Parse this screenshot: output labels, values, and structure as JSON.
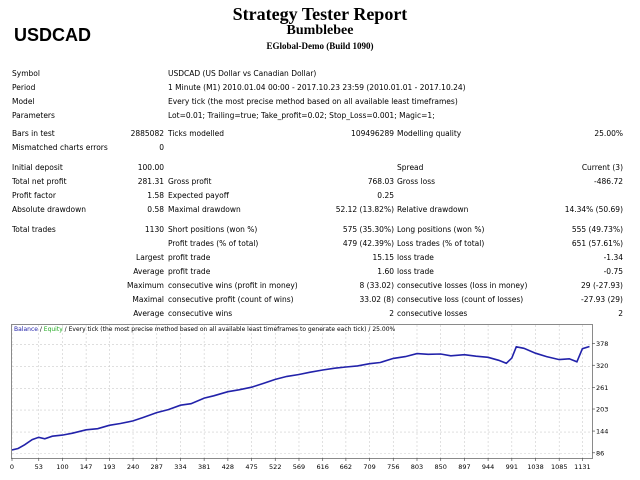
{
  "symbol_title": "USDCAD",
  "report": {
    "title": "Strategy Tester Report",
    "expert": "Bumblebee",
    "server": "EGlobal-Demo (Build 1090)"
  },
  "info": {
    "symbol_label": "Symbol",
    "symbol_value": "USDCAD (US Dollar vs Canadian Dollar)",
    "period_label": "Period",
    "period_value": "1 Minute (M1) 2010.01.04 00:00 - 2017.10.23 23:59 (2010.01.01 - 2017.10.24)",
    "model_label": "Model",
    "model_value": "Every tick (the most precise method based on all available least timeframes)",
    "params_label": "Parameters",
    "params_value": "Lot=0.01; Trailing=true; Take_profit=0.02; Stop_Loss=0.001; Magic=1;"
  },
  "bars": {
    "bars_label": "Bars in test",
    "bars_value": "2885082",
    "ticks_label": "Ticks modelled",
    "ticks_value": "109496289",
    "quality_label": "Modelling quality",
    "quality_value": "25.00%",
    "mismatch_label": "Mismatched charts errors",
    "mismatch_value": "0"
  },
  "stats": {
    "initial_deposit_label": "Initial deposit",
    "initial_deposit": "100.00",
    "spread_label": "Spread",
    "spread_value": "Current (3)",
    "net_profit_label": "Total net profit",
    "net_profit": "281.31",
    "gross_profit_label": "Gross profit",
    "gross_profit": "768.03",
    "gross_loss_label": "Gross loss",
    "gross_loss": "-486.72",
    "profit_factor_label": "Profit factor",
    "profit_factor": "1.58",
    "expected_payoff_label": "Expected payoff",
    "expected_payoff": "0.25",
    "abs_dd_label": "Absolute drawdown",
    "abs_dd": "0.58",
    "max_dd_label": "Maximal drawdown",
    "max_dd": "52.12 (13.82%)",
    "rel_dd_label": "Relative drawdown",
    "rel_dd": "14.34% (50.69)"
  },
  "trades": {
    "total_label": "Total trades",
    "total": "1130",
    "short_label": "Short positions (won %)",
    "short": "575 (35.30%)",
    "long_label": "Long positions (won %)",
    "long": "555 (49.73%)",
    "profit_trades_label": "Profit trades (% of total)",
    "profit_trades": "479 (42.39%)",
    "loss_trades_label": "Loss trades (% of total)",
    "loss_trades": "651 (57.61%)",
    "largest_label": "Largest",
    "average_label": "Average",
    "maximum_label": "Maximum",
    "maximal_label": "Maximal",
    "profit_trade_label": "profit trade",
    "loss_trade_label": "loss trade",
    "largest_profit": "15.15",
    "largest_loss": "-1.34",
    "average_profit": "1.60",
    "average_loss": "-0.75",
    "max_cons_wins_label": "consecutive wins (profit in money)",
    "max_cons_wins": "8 (33.02)",
    "max_cons_losses_label": "consecutive losses (loss in money)",
    "max_cons_losses": "29 (-27.93)",
    "maximal_cons_profit_label": "consecutive profit (count of wins)",
    "maximal_cons_profit": "33.02 (8)",
    "maximal_cons_loss_label": "consecutive loss (count of losses)",
    "maximal_cons_loss": "-27.93 (29)",
    "avg_cons_wins_label": "consecutive wins",
    "avg_cons_wins": "2",
    "avg_cons_losses_label": "consecutive losses",
    "avg_cons_losses": "2"
  },
  "chart": {
    "caption_balance": "Balance",
    "caption_sep": " / ",
    "caption_equity": "Equity",
    "caption_rest": " / Every tick (the most precise method based on all available least timeframes to generate each tick) / 25.00%",
    "balance_color": "#2222aa",
    "equity_color": "#22aa22"
  },
  "chart_data": {
    "type": "line",
    "title": "",
    "xlabel": "",
    "ylabel": "",
    "x_ticks": [
      0,
      53,
      100,
      147,
      193,
      240,
      287,
      334,
      381,
      428,
      475,
      522,
      569,
      616,
      662,
      709,
      756,
      803,
      850,
      897,
      944,
      991,
      1038,
      1085,
      1131
    ],
    "y_ticks": [
      86,
      144,
      203,
      261,
      320,
      378
    ],
    "xlim": [
      0,
      1150
    ],
    "ylim": [
      80,
      393
    ],
    "series": [
      {
        "name": "Balance",
        "x": [
          0,
          12,
          25,
          40,
          53,
          65,
          80,
          100,
          120,
          147,
          170,
          193,
          215,
          240,
          260,
          287,
          310,
          334,
          355,
          381,
          400,
          428,
          450,
          475,
          500,
          522,
          545,
          569,
          590,
          616,
          640,
          662,
          685,
          709,
          730,
          756,
          780,
          803,
          825,
          850,
          870,
          897,
          920,
          944,
          965,
          980,
          991,
          1000,
          1015,
          1038,
          1060,
          1085,
          1105,
          1120,
          1131,
          1145
        ],
        "y": [
          96,
          100,
          110,
          124,
          130,
          126,
          133,
          136,
          141,
          150,
          153,
          162,
          167,
          174,
          183,
          196,
          204,
          216,
          220,
          235,
          241,
          252,
          257,
          264,
          275,
          285,
          293,
          298,
          304,
          310,
          315,
          318,
          321,
          327,
          330,
          341,
          346,
          354,
          352,
          353,
          348,
          351,
          347,
          344,
          336,
          328,
          342,
          372,
          368,
          355,
          346,
          338,
          340,
          332,
          367,
          373
        ]
      }
    ]
  }
}
